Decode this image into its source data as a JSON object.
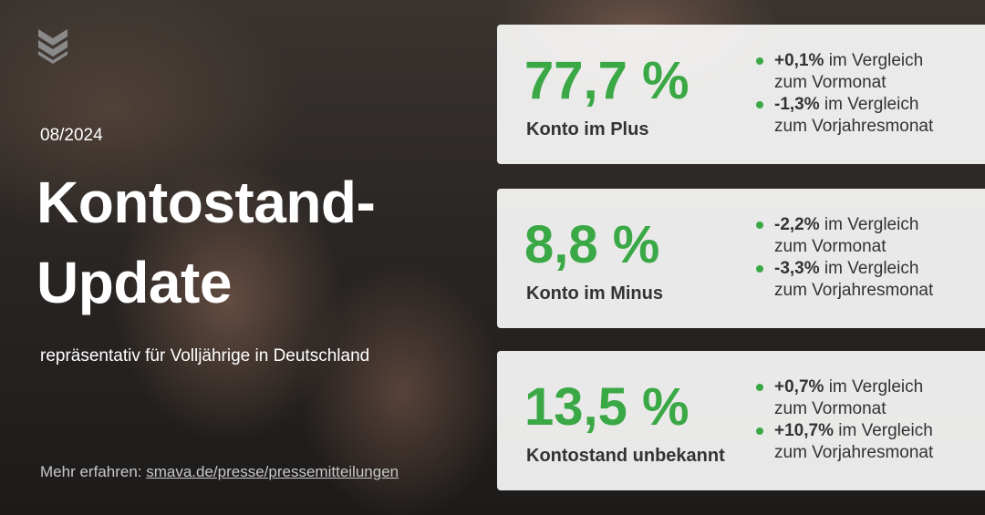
{
  "header": {
    "date": "08/2024",
    "title_lines": [
      "Kontostand-",
      "Update"
    ],
    "subtitle": "repräsentativ für Volljährige in Deutschland"
  },
  "footer": {
    "prefix": "Mehr erfahren:",
    "link": "smava.de/presse/pressemitteilungen"
  },
  "cards": [
    {
      "value": "77,7 %",
      "label": "Konto im Plus",
      "bullets": [
        {
          "change": "+0,1%",
          "lines": [
            "im Vergleich",
            "zum Vormonat"
          ]
        },
        {
          "change": "-1,3%",
          "lines": [
            "im Vergleich",
            "zum Vorjahresmonat"
          ]
        }
      ]
    },
    {
      "value": "8,8 %",
      "label": "Konto im Minus",
      "bullets": [
        {
          "change": "-2,2%",
          "lines": [
            "im Vergleich",
            "zum Vormonat"
          ]
        },
        {
          "change": "-3,3%",
          "lines": [
            "im Vergleich",
            "zum Vorjahresmonat"
          ]
        }
      ]
    },
    {
      "value": "13,5 %",
      "label": "Kontostand unbekannt",
      "bullets": [
        {
          "change": "+0,7%",
          "lines": [
            "im Vergleich",
            "zum Vormonat"
          ]
        },
        {
          "change": "+10,7%",
          "lines": [
            "im Vergleich",
            "zum Vorjahresmonat"
          ]
        }
      ]
    }
  ]
}
